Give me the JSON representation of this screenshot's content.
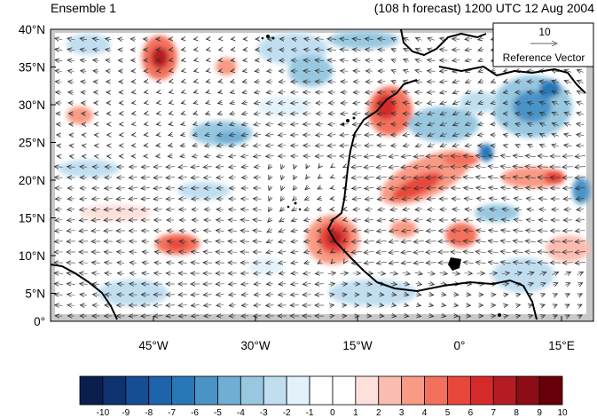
{
  "header": {
    "left_title": "Ensemble 1",
    "right_title": "(108 h forecast) 1200 UTC 12 Aug 2004"
  },
  "axes": {
    "y_ticks": [
      "40°N",
      "35°N",
      "30°N",
      "25°N",
      "20°N",
      "15°N",
      "10°N",
      "5°N",
      "0°"
    ],
    "x_ticks": [
      "45°W",
      "30°W",
      "15°W",
      "0°",
      "15°E"
    ]
  },
  "reference_vector": {
    "value": "10",
    "label": "Reference Vector"
  },
  "colorbar": {
    "labels": [
      "-10",
      "-9",
      "-8",
      "-7",
      "-6",
      "-5",
      "-4",
      "-3",
      "-2",
      "-1",
      "0",
      "1",
      "2",
      "3",
      "4",
      "5",
      "6",
      "7",
      "8",
      "9",
      "10"
    ],
    "colors": [
      "#0b1f4e",
      "#0e3370",
      "#164e93",
      "#1d64aa",
      "#2877b8",
      "#4a93c6",
      "#71aed4",
      "#98c8e0",
      "#c0def0",
      "#e3f1fa",
      "#ffffff",
      "#ffffff",
      "#fde0dc",
      "#fbbcb0",
      "#f89a84",
      "#f3715c",
      "#e8473b",
      "#d42a2c",
      "#b51b22",
      "#8c0d16",
      "#670008"
    ]
  }
}
